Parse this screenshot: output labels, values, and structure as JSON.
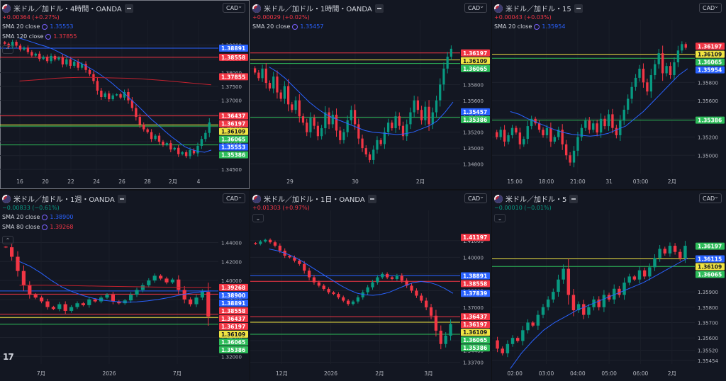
{
  "symbol": "米ドル／加ドル",
  "currency_button": "CAD",
  "chart_data": [
    {
      "id": "p1",
      "type": "candlestick",
      "title": "米ドル／加ドル・4時間・OANDA",
      "change": "+0.00364 (+0.27%)",
      "change_dir": "up",
      "indicators": [
        {
          "label": "SMA 20 close",
          "value": "1.35553",
          "color": "#2962ff"
        },
        {
          "label": "SMA 120 close",
          "value": "1.37855",
          "color": "#f23645"
        }
      ],
      "has_collapse": true,
      "price_ticks": [
        "1.39000",
        "1.38500",
        "1.38000",
        "1.37500",
        "1.37000",
        "1.36500",
        "1.36000",
        "1.35500",
        "1.35000",
        "1.34500"
      ],
      "time_ticks": [
        "16",
        "20",
        "22",
        "24",
        "26",
        "28",
        "2月",
        "4"
      ],
      "ylim": [
        1.3435,
        1.393
      ],
      "hlines": [
        {
          "price": 1.38891,
          "color": "#2962ff"
        },
        {
          "price": 1.38558,
          "color": "#f23645"
        },
        {
          "price": 1.36437,
          "color": "#f23645"
        },
        {
          "price": 1.36109,
          "color": "#f0e442"
        },
        {
          "price": 1.36065,
          "color": "#2ebd5a"
        },
        {
          "price": 1.35386,
          "color": "#2ebd5a"
        }
      ],
      "labels": [
        {
          "text": "1.38891",
          "price": 1.38891,
          "color": "#2962ff"
        },
        {
          "text": "1.38558",
          "price": 1.38558,
          "color": "#f23645"
        },
        {
          "text": "1.37855",
          "price": 1.37855,
          "color": "#f23645"
        },
        {
          "text": "1.36437",
          "price": 1.36437,
          "color": "#f23645"
        },
        {
          "text": "1.36197",
          "price": 1.36197,
          "color": "#f23645"
        },
        {
          "text": "1.36109",
          "price": 1.36109,
          "color": "#f0e442"
        },
        {
          "text": "1.36065",
          "price": 1.36065,
          "color": "#2ebd5a"
        },
        {
          "text": "1.35553",
          "price": 1.35553,
          "color": "#2962ff"
        },
        {
          "text": "1.35386",
          "price": 1.35386,
          "color": "#2ebd5a"
        }
      ],
      "closes": [
        1.3905,
        1.3895,
        1.3912,
        1.3898,
        1.3884,
        1.3891,
        1.3875,
        1.3862,
        1.3869,
        1.385,
        1.3858,
        1.3842,
        1.3861,
        1.3848,
        1.3855,
        1.383,
        1.3848,
        1.3825,
        1.384,
        1.3818,
        1.3832,
        1.381,
        1.3795,
        1.377,
        1.3735,
        1.3712,
        1.3725,
        1.3704,
        1.3718,
        1.3722,
        1.371,
        1.373,
        1.37,
        1.3672,
        1.364,
        1.3612,
        1.3595,
        1.3585,
        1.356,
        1.3572,
        1.355,
        1.3538,
        1.3545,
        1.3522,
        1.3528,
        1.3505,
        1.3512,
        1.3498,
        1.352,
        1.3508,
        1.3535,
        1.356,
        1.3582,
        1.362
      ],
      "sma_fast": [
        1.3925,
        1.3918,
        1.391,
        1.3902,
        1.3895,
        1.3886,
        1.3874,
        1.3862,
        1.385,
        1.3838,
        1.3825,
        1.3812,
        1.3797,
        1.378,
        1.3762,
        1.3741,
        1.3722,
        1.37,
        1.3678,
        1.3654,
        1.363,
        1.361,
        1.3588,
        1.3568,
        1.355,
        1.3532,
        1.3522,
        1.3515,
        1.3512,
        1.352
      ],
      "sma_slow": [
        1.377,
        1.3773,
        1.3776,
        1.378,
        1.3782,
        1.3783,
        1.3783,
        1.3782,
        1.3781,
        1.378,
        1.3778,
        1.3775,
        1.3772,
        1.3768,
        1.3764,
        1.376,
        1.3756
      ]
    },
    {
      "id": "p2",
      "type": "candlestick",
      "title": "米ドル／加ドル・1時間・OANDA",
      "change": "+0.00029 (+0.02%)",
      "change_dir": "up",
      "indicators": [
        {
          "label": "SMA 20 close",
          "value": "1.35457",
          "color": "#2962ff"
        }
      ],
      "has_collapse": false,
      "price_ticks": [
        "1.36000",
        "1.35800",
        "1.35600",
        "1.35400",
        "1.35200",
        "1.35000",
        "1.34800"
      ],
      "time_ticks": [
        "29",
        "30",
        "2月"
      ],
      "ylim": [
        1.3468,
        1.364
      ],
      "hlines": [
        {
          "price": 1.36197,
          "color": "#f23645"
        },
        {
          "price": 1.36109,
          "color": "#f0e442"
        },
        {
          "price": 1.36065,
          "color": "#2ebd5a"
        },
        {
          "price": 1.35386,
          "color": "#2ebd5a"
        }
      ],
      "labels": [
        {
          "text": "1.36197",
          "price": 1.36197,
          "color": "#f23645"
        },
        {
          "text": "1.36109",
          "price": 1.36109,
          "color": "#f0e442"
        },
        {
          "text": "1.36065",
          "price": 1.36065,
          "color": "#2ebd5a"
        },
        {
          "text": "1.35457",
          "price": 1.35457,
          "color": "#2962ff"
        },
        {
          "text": "1.35386",
          "price": 1.35386,
          "color": "#2ebd5a"
        }
      ],
      "closes": [
        1.3595,
        1.3588,
        1.36,
        1.3582,
        1.3575,
        1.359,
        1.357,
        1.3562,
        1.3578,
        1.3555,
        1.3548,
        1.356,
        1.354,
        1.3532,
        1.352,
        1.3538,
        1.3528,
        1.3515,
        1.3525,
        1.3545,
        1.353,
        1.3542,
        1.3522,
        1.351,
        1.352,
        1.3535,
        1.3548,
        1.353,
        1.3512,
        1.35,
        1.3492,
        1.3485,
        1.3498,
        1.351,
        1.3505,
        1.352,
        1.3532,
        1.3525,
        1.354,
        1.3528,
        1.3515,
        1.353,
        1.3545,
        1.356,
        1.3548,
        1.3535,
        1.3552,
        1.353,
        1.3545,
        1.356,
        1.358,
        1.36,
        1.3615,
        1.3625
      ],
      "sma_fast": [
        1.3602,
        1.3596,
        1.3588,
        1.3578,
        1.3568,
        1.3558,
        1.355,
        1.3543,
        1.3538,
        1.3534,
        1.353,
        1.3526,
        1.3522,
        1.352,
        1.3519,
        1.3518,
        1.3517,
        1.3518,
        1.352,
        1.3524,
        1.3528,
        1.3534,
        1.3545,
        1.3558
      ]
    },
    {
      "id": "p3",
      "type": "candlestick",
      "title": "米ドル／加ドル・15",
      "change": "+0.00043 (+0.03%)",
      "change_dir": "up",
      "indicators": [
        {
          "label": "SMA 20 close",
          "value": "1.35954",
          "color": "#2962ff"
        }
      ],
      "has_collapse": false,
      "price_ticks": [
        "1.35800",
        "1.35600",
        "1.35400",
        "1.35200",
        "1.35000"
      ],
      "time_ticks": [
        "15:00",
        "18:00",
        "21:00",
        "31",
        "03:00",
        "2月"
      ],
      "ylim": [
        1.348,
        1.363
      ],
      "hlines": [
        {
          "price": 1.36109,
          "color": "#f0e442"
        },
        {
          "price": 1.36065,
          "color": "#2ebd5a"
        },
        {
          "price": 1.35386,
          "color": "#2ebd5a"
        }
      ],
      "labels": [
        {
          "text": "1.36197",
          "price": 1.36197,
          "color": "#f23645"
        },
        {
          "text": "1.36109",
          "price": 1.36109,
          "color": "#f0e442"
        },
        {
          "text": "1.36065",
          "price": 1.36065,
          "color": "#2ebd5a"
        },
        {
          "text": "1.35954",
          "price": 1.35954,
          "color": "#2962ff"
        },
        {
          "text": "1.35386",
          "price": 1.35386,
          "color": "#2ebd5a"
        }
      ],
      "closes": [
        1.352,
        1.3528,
        1.3515,
        1.3522,
        1.353,
        1.3525,
        1.3512,
        1.3518,
        1.3532,
        1.354,
        1.3535,
        1.3528,
        1.3522,
        1.353,
        1.3515,
        1.352,
        1.3528,
        1.3512,
        1.35,
        1.3492,
        1.3505,
        1.352,
        1.353,
        1.3538,
        1.3528,
        1.3535,
        1.3525,
        1.354,
        1.3532,
        1.3545,
        1.353,
        1.3522,
        1.3538,
        1.355,
        1.3562,
        1.3575,
        1.3585,
        1.3595,
        1.358,
        1.357,
        1.3588,
        1.36,
        1.3612,
        1.359,
        1.3598,
        1.3588,
        1.3602,
        1.3615,
        1.3622,
        1.3618
      ],
      "sma_fast": [
        1.3548,
        1.3545,
        1.354,
        1.3536,
        1.3532,
        1.3528,
        1.3525,
        1.3523,
        1.3522,
        1.3521,
        1.3522,
        1.3524,
        1.3528,
        1.3532,
        1.354,
        1.3548,
        1.3558,
        1.3568,
        1.3578,
        1.3588,
        1.3595
      ]
    },
    {
      "id": "p4",
      "type": "candlestick",
      "title": "米ドル／加ドル・1週・OANDA",
      "change": "−0.00833 (−0.61%)",
      "change_dir": "down",
      "indicators": [
        {
          "label": "SMA 20 close",
          "value": "1.38900",
          "color": "#2962ff"
        },
        {
          "label": "SMA 80 close",
          "value": "1.39268",
          "color": "#f23645"
        }
      ],
      "has_collapse": true,
      "price_ticks": [
        "1.44000",
        "1.42000",
        "1.40000",
        "1.38000",
        "1.36000",
        "1.34000",
        "1.32000"
      ],
      "time_ticks": [
        "7月",
        "2026",
        "7月"
      ],
      "ylim": [
        1.312,
        1.456
      ],
      "hlines": [
        {
          "price": 1.38891,
          "color": "#2962ff"
        },
        {
          "price": 1.38558,
          "color": "#f23645"
        },
        {
          "price": 1.36437,
          "color": "#f23645"
        },
        {
          "price": 1.36109,
          "color": "#f0e442"
        },
        {
          "price": 1.35386,
          "color": "#2ebd5a"
        }
      ],
      "labels": [
        {
          "text": "1.39268",
          "price": 1.39268,
          "color": "#f23645"
        },
        {
          "text": "1.38900",
          "price": 1.389,
          "color": "#2962ff"
        },
        {
          "text": "1.38891",
          "price": 1.38891,
          "color": "#2962ff"
        },
        {
          "text": "1.38558",
          "price": 1.38558,
          "color": "#f23645"
        },
        {
          "text": "1.36437",
          "price": 1.36437,
          "color": "#f23645"
        },
        {
          "text": "1.36197",
          "price": 1.36197,
          "color": "#f23645"
        },
        {
          "text": "1.36109",
          "price": 1.36109,
          "color": "#f0e442"
        },
        {
          "text": "1.36065",
          "price": 1.36065,
          "color": "#2ebd5a"
        },
        {
          "text": "1.35386",
          "price": 1.35386,
          "color": "#2ebd5a"
        }
      ],
      "closes": [
        1.435,
        1.425,
        1.41,
        1.395,
        1.385,
        1.382,
        1.378,
        1.372,
        1.37,
        1.375,
        1.368,
        1.372,
        1.376,
        1.374,
        1.38,
        1.378,
        1.382,
        1.385,
        1.378,
        1.376,
        1.379,
        1.385,
        1.39,
        1.395,
        1.4,
        1.405,
        1.402,
        1.398,
        1.401,
        1.39,
        1.38,
        1.375,
        1.382,
        1.388,
        1.362
      ],
      "sma_fast": [
        1.42,
        1.415,
        1.408,
        1.4,
        1.393,
        1.388,
        1.384,
        1.381,
        1.379,
        1.3778,
        1.3772,
        1.3775,
        1.3785,
        1.38,
        1.382,
        1.3845,
        1.3865,
        1.388,
        1.389
      ],
      "sma_slow": [
        1.395,
        1.395,
        1.3945,
        1.394,
        1.3935,
        1.393,
        1.3928,
        1.3927
      ]
    },
    {
      "id": "p5",
      "type": "candlestick",
      "title": "米ドル／加ドル・1日・OANDA",
      "change": "+0.01303 (+0.97%)",
      "change_dir": "up",
      "indicators": [],
      "has_collapse": true,
      "price_ticks": [
        "1.41000",
        "1.40000",
        "1.39000",
        "1.38000",
        "1.37000",
        "1.36000",
        "1.35000",
        "1.34400",
        "1.33700"
      ],
      "time_ticks": [
        "12月",
        "2026",
        "2月",
        "3月"
      ],
      "ylim": [
        1.336,
        1.418
      ],
      "hlines": [
        {
          "price": 1.38891,
          "color": "#2962ff"
        },
        {
          "price": 1.38558,
          "color": "#f23645"
        },
        {
          "price": 1.36437,
          "color": "#f23645"
        },
        {
          "price": 1.36109,
          "color": "#f0e442"
        },
        {
          "price": 1.35386,
          "color": "#2ebd5a"
        }
      ],
      "labels": [
        {
          "text": "1.41197",
          "price": 1.41197,
          "color": "#f23645"
        },
        {
          "text": "1.38891",
          "price": 1.38891,
          "color": "#2962ff"
        },
        {
          "text": "1.38558",
          "price": 1.38558,
          "color": "#f23645"
        },
        {
          "text": "1.37839",
          "price": 1.37839,
          "color": "#2962ff"
        },
        {
          "text": "1.36437",
          "price": 1.36437,
          "color": "#f23645"
        },
        {
          "text": "1.36197",
          "price": 1.36197,
          "color": "#f23645"
        },
        {
          "text": "1.36109",
          "price": 1.36109,
          "color": "#f0e442"
        },
        {
          "text": "1.36065",
          "price": 1.36065,
          "color": "#2ebd5a"
        },
        {
          "text": "1.35386",
          "price": 1.35386,
          "color": "#2ebd5a"
        }
      ],
      "closes": [
        1.408,
        1.4095,
        1.4105,
        1.409,
        1.407,
        1.404,
        1.401,
        1.4,
        1.398,
        1.396,
        1.392,
        1.388,
        1.385,
        1.383,
        1.381,
        1.379,
        1.378,
        1.376,
        1.374,
        1.372,
        1.3735,
        1.376,
        1.379,
        1.382,
        1.385,
        1.388,
        1.39,
        1.388,
        1.387,
        1.389,
        1.386,
        1.383,
        1.38,
        1.377,
        1.374,
        1.37,
        1.365,
        1.356,
        1.348,
        1.353,
        1.36
      ],
      "sma_fast": [
        1.405,
        1.404,
        1.4025,
        1.4005,
        1.398,
        1.395,
        1.392,
        1.389,
        1.386,
        1.383,
        1.3805,
        1.3785,
        1.3775,
        1.3772,
        1.3778,
        1.379,
        1.381,
        1.383,
        1.3848,
        1.3855,
        1.385,
        1.3835,
        1.3812,
        1.3784
      ]
    },
    {
      "id": "p6",
      "type": "candlestick",
      "title": "米ドル／加ドル・5",
      "change": "−0.00010 (−0.01%)",
      "change_dir": "down",
      "indicators": [],
      "has_collapse": true,
      "price_ticks": [
        "1.35900",
        "1.35800",
        "1.35700",
        "1.35600",
        "1.35520",
        "1.35454"
      ],
      "time_ticks": [
        "02:00",
        "03:00",
        "04:00",
        "05:00",
        "06:00",
        "2月"
      ],
      "ylim": [
        1.3543,
        1.3632
      ],
      "hlines": [
        {
          "price": 1.36115,
          "color": "#f0e442"
        },
        {
          "price": 1.36065,
          "color": "#2ebd5a"
        }
      ],
      "labels": [
        {
          "text": "1.36197",
          "price": 1.36197,
          "color": "#2ebd5a"
        },
        {
          "text": "1.36115",
          "price": 1.36115,
          "color": "#2962ff"
        },
        {
          "text": "1.36109",
          "price": 1.36109,
          "color": "#f0e442"
        },
        {
          "text": "1.36065",
          "price": 1.36065,
          "color": "#2ebd5a"
        }
      ],
      "closes": [
        1.3553,
        1.355,
        1.3556,
        1.356,
        1.3558,
        1.3565,
        1.357,
        1.3568,
        1.3575,
        1.358,
        1.3585,
        1.359,
        1.3598,
        1.3605,
        1.3588,
        1.3578,
        1.3582,
        1.3575,
        1.358,
        1.3585,
        1.358,
        1.3588,
        1.3585,
        1.3592,
        1.3588,
        1.3596,
        1.36,
        1.3598,
        1.3604,
        1.36,
        1.3606,
        1.3612,
        1.3618,
        1.3615,
        1.362,
        1.3616,
        1.3612,
        1.362
      ],
      "sma_fast": [
        1.354,
        1.355,
        1.3558,
        1.3565,
        1.357,
        1.3574,
        1.3578,
        1.3581,
        1.3584,
        1.3587,
        1.359,
        1.3593,
        1.3596,
        1.36,
        1.3604,
        1.3608,
        1.3612
      ]
    }
  ]
}
